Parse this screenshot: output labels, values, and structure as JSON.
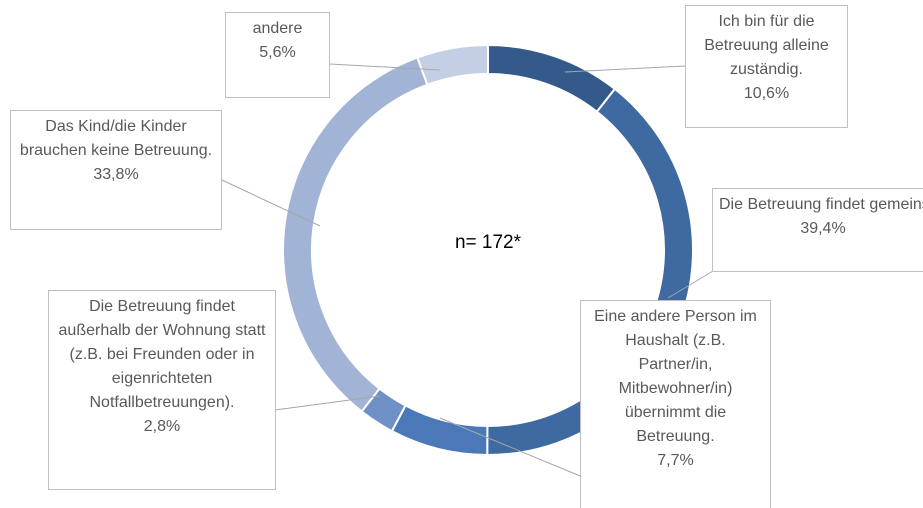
{
  "chart_data": {
    "type": "donut",
    "annotation": "n= 172*",
    "categories": [
      "Ich bin für die Betreuung alleine zuständig.",
      "Die Betreuung findet gemeinsam statt.",
      "Eine andere Person im Haushalt (z.B. Partner/in, Mitbewohner/in) übernimmt die Betreuung.",
      "Die Betreuung findet außerhalb der Wohnung statt (z.B. bei Freunden oder in eigenrichteten Notfallbetreuungen).",
      "Das Kind/die Kinder brauchen keine Betreuung.",
      "andere"
    ],
    "values": [
      10.6,
      39.4,
      7.7,
      2.8,
      33.8,
      5.6
    ],
    "value_labels": [
      "10,6%",
      "39,4%",
      "7,7%",
      "2,8%",
      "33,8%",
      "5,6%"
    ],
    "colors": [
      "#335a8a",
      "#3e69a1",
      "#4a78b8",
      "#6f8fc7",
      "#a2b4d6",
      "#c4cfe5"
    ]
  }
}
